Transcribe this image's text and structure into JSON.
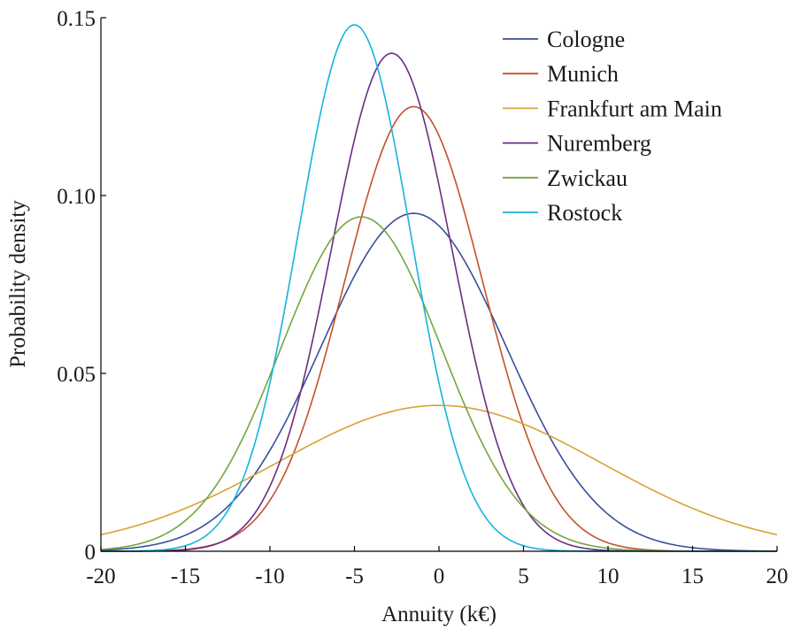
{
  "chart_data": {
    "type": "line",
    "title": "",
    "xlabel": "Annuity (k€)",
    "ylabel": "Probability density",
    "xlim": [
      -20,
      20
    ],
    "ylim": [
      0,
      0.15
    ],
    "xticks": [
      -20,
      -15,
      -10,
      -5,
      0,
      5,
      10,
      15,
      20
    ],
    "xtick_labels": [
      "-20",
      "-15",
      "-10",
      "-5",
      "0",
      "5",
      "10",
      "15",
      "20"
    ],
    "yticks": [
      0,
      0.05,
      0.1,
      0.15
    ],
    "ytick_labels": [
      "0",
      "0.05",
      "0.10",
      "0.15"
    ],
    "grid": false,
    "legend_position": "top-right",
    "series": [
      {
        "name": "Cologne",
        "color": "#3a4e9c",
        "mean": -1.5,
        "peak_density": 0.095,
        "x": [
          -20,
          -15,
          -10,
          -7.5,
          -5,
          -3.75,
          -2.5,
          -1.5,
          0,
          2.5,
          5,
          7.5,
          10,
          15,
          20
        ],
        "y": [
          0.0001,
          0.0036,
          0.0258,
          0.0503,
          0.0789,
          0.0895,
          0.0941,
          0.095,
          0.0907,
          0.0755,
          0.0521,
          0.0297,
          0.0141,
          0.0017,
          0.0001
        ]
      },
      {
        "name": "Munich",
        "color": "#c4502c",
        "mean": -1.5,
        "peak_density": 0.125,
        "x": [
          -20,
          -15,
          -10,
          -7.5,
          -5,
          -3.75,
          -2.5,
          -1.5,
          0,
          2.5,
          5,
          7.5,
          10,
          15,
          20
        ],
        "y": [
          0.0,
          0.0004,
          0.0107,
          0.0362,
          0.0788,
          0.1052,
          0.1212,
          0.125,
          0.1105,
          0.0738,
          0.0354,
          0.0121,
          0.0029,
          0.0001,
          0.0
        ]
      },
      {
        "name": "Frankfurt am Main",
        "color": "#d9a232",
        "mean": 0.0,
        "peak_density": 0.041,
        "x": [
          -20,
          -15,
          -10,
          -7.5,
          -5,
          -3.75,
          -2.5,
          0,
          2.5,
          5,
          7.5,
          10,
          15,
          20
        ],
        "y": [
          0.0048,
          0.0122,
          0.0225,
          0.0283,
          0.0338,
          0.036,
          0.0383,
          0.041,
          0.0383,
          0.0338,
          0.0283,
          0.0225,
          0.0122,
          0.0048
        ]
      },
      {
        "name": "Nuremberg",
        "color": "#6b2d83",
        "mean": -2.8,
        "peak_density": 0.14,
        "x": [
          -20,
          -15,
          -10,
          -7.5,
          -5,
          -3.75,
          -2.8,
          -2.5,
          0,
          2.5,
          5,
          7.5,
          10,
          15,
          20
        ],
        "y": [
          0.0,
          0.0006,
          0.0201,
          0.0625,
          0.1171,
          0.1361,
          0.14,
          0.1396,
          0.1046,
          0.0459,
          0.0117,
          0.0017,
          0.0001,
          0.0,
          0.0
        ]
      },
      {
        "name": "Zwickau",
        "color": "#73a640",
        "mean": -4.6,
        "peak_density": 0.094,
        "x": [
          -20,
          -15,
          -10,
          -7.5,
          -4.6,
          -3.75,
          -2.5,
          0,
          2.5,
          5,
          7.5,
          10,
          15,
          20
        ],
        "y": [
          0.0005,
          0.0091,
          0.0484,
          0.0792,
          0.094,
          0.0929,
          0.0873,
          0.0618,
          0.0323,
          0.0124,
          0.0035,
          0.0007,
          0.0,
          0.0
        ]
      },
      {
        "name": "Rostock",
        "color": "#16b3dc",
        "mean": -5.0,
        "peak_density": 0.148,
        "x": [
          -20,
          -15,
          -12.5,
          -10,
          -7.5,
          -5,
          -3.75,
          -2.5,
          0,
          2.5,
          5,
          10,
          20
        ],
        "y": [
          0.0,
          0.0018,
          0.0118,
          0.0445,
          0.1061,
          0.148,
          0.136,
          0.1061,
          0.0445,
          0.0118,
          0.0018,
          0.0,
          0.0
        ]
      }
    ]
  }
}
